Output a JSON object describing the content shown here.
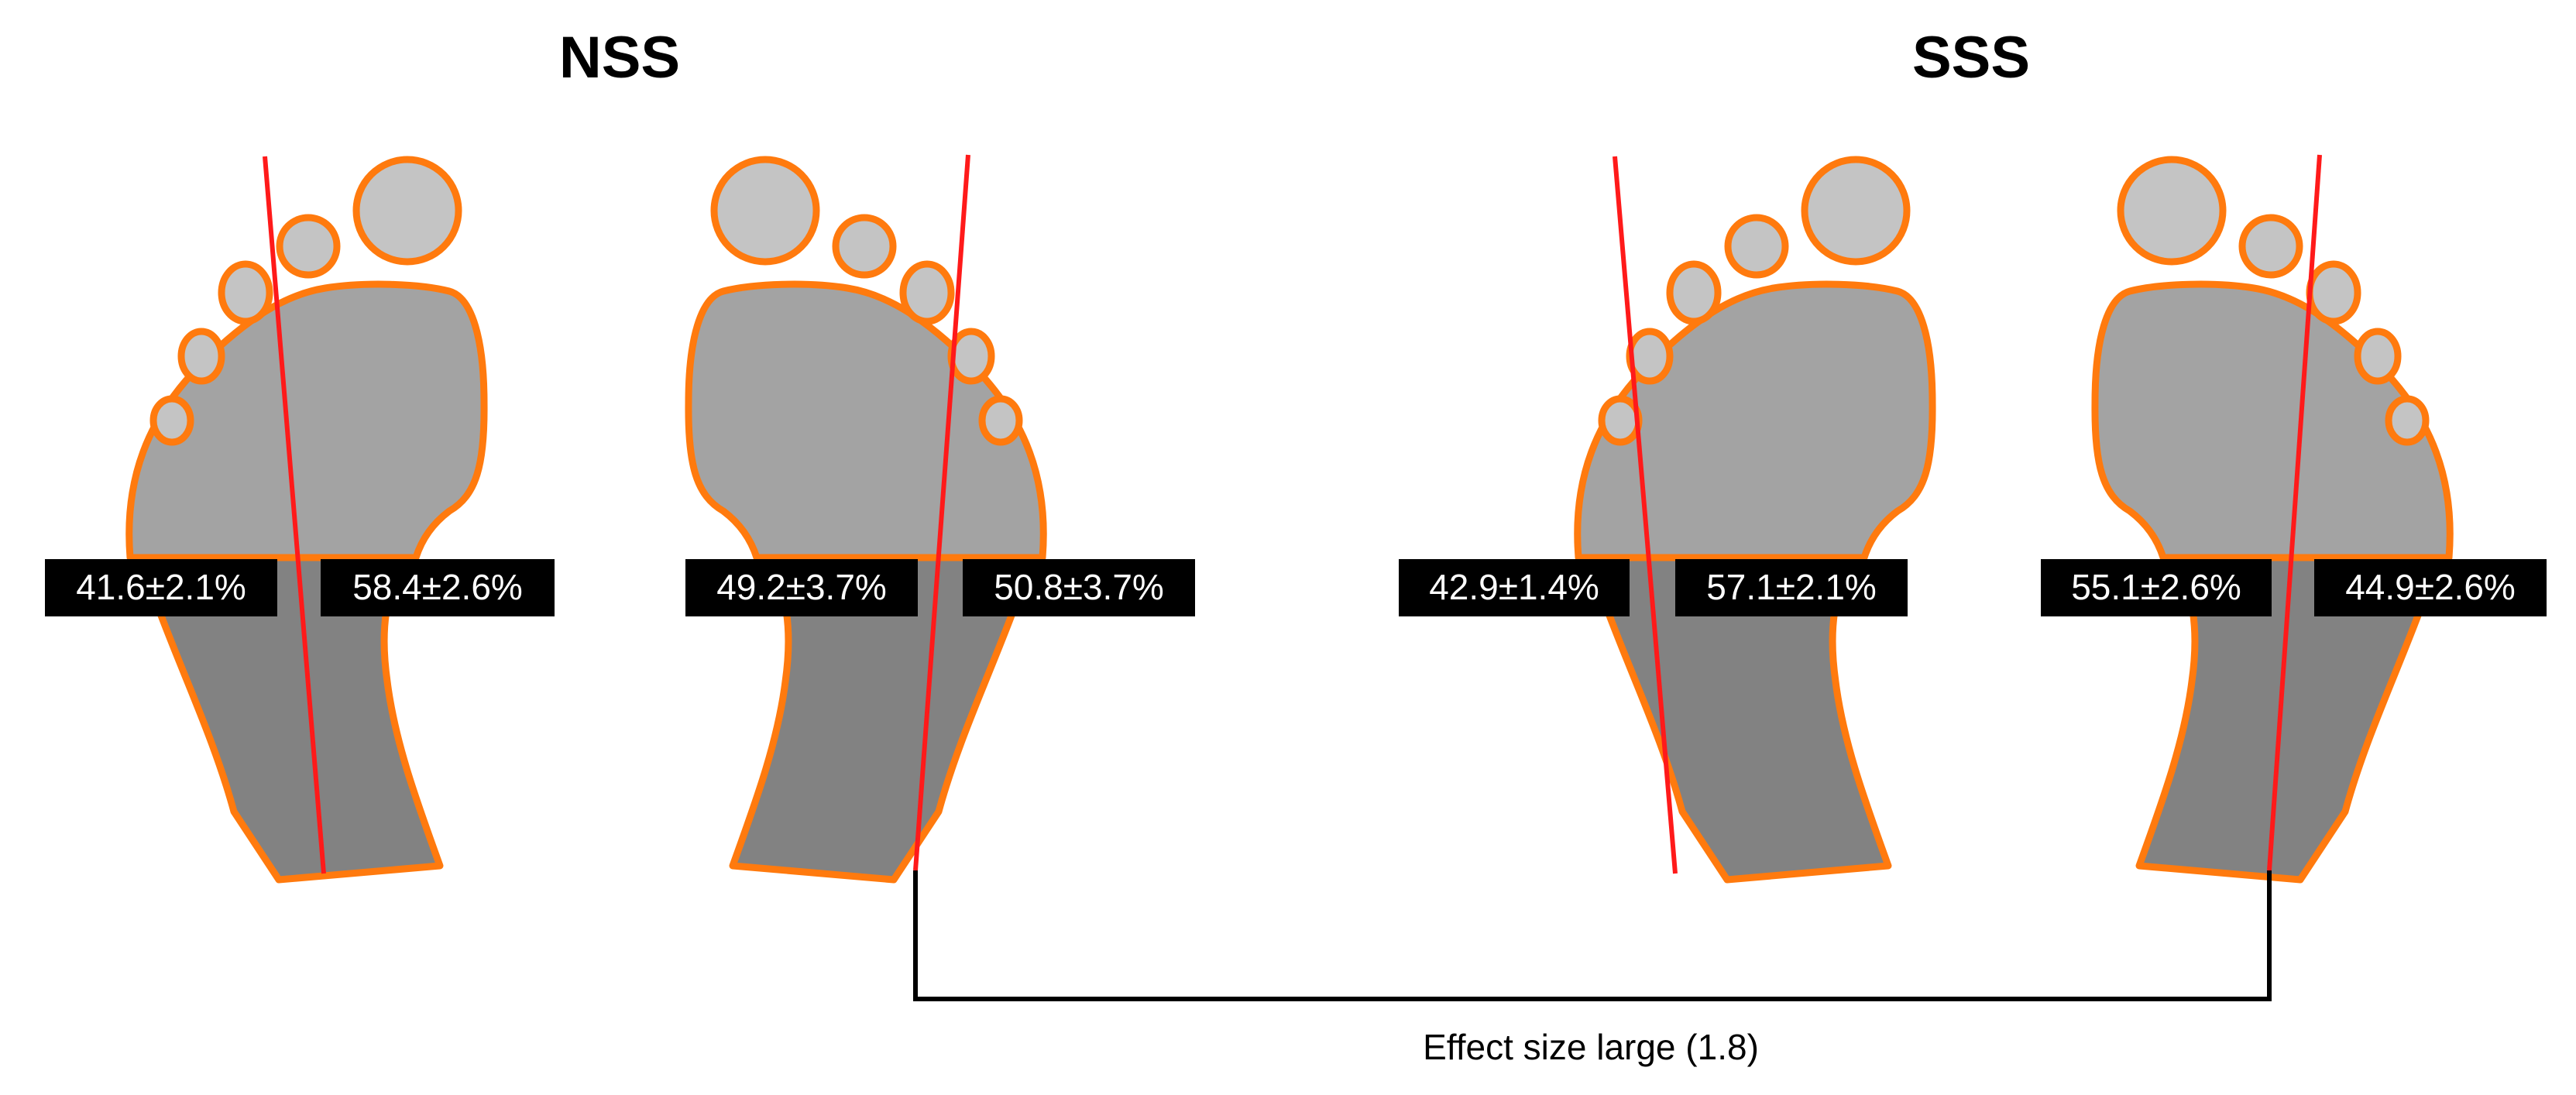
{
  "groups": [
    {
      "title": "NSS"
    },
    {
      "title": "SSS"
    }
  ],
  "feet": [
    {
      "side": "left",
      "group": "NSS",
      "left_label": "41.6±2.1%",
      "right_label": "58.4±2.6%"
    },
    {
      "side": "right",
      "group": "NSS",
      "left_label": "49.2±3.7%",
      "right_label": "50.8±3.7%"
    },
    {
      "side": "left",
      "group": "SSS",
      "left_label": "42.9±1.4%",
      "right_label": "57.1±2.1%"
    },
    {
      "side": "right",
      "group": "SSS",
      "left_label": "55.1±2.6%",
      "right_label": "44.9±2.6%"
    }
  ],
  "comparison": {
    "label": "Effect size large (1.8)"
  },
  "colors": {
    "outline": "#FF7A0E",
    "toe": "#C4C4C4",
    "forefoot": "#A3A3A3",
    "heel": "#828282",
    "axis_line": "#FF1A1A",
    "label_bg": "#000000",
    "label_text": "#FFFFFF",
    "bracket": "#000000"
  }
}
